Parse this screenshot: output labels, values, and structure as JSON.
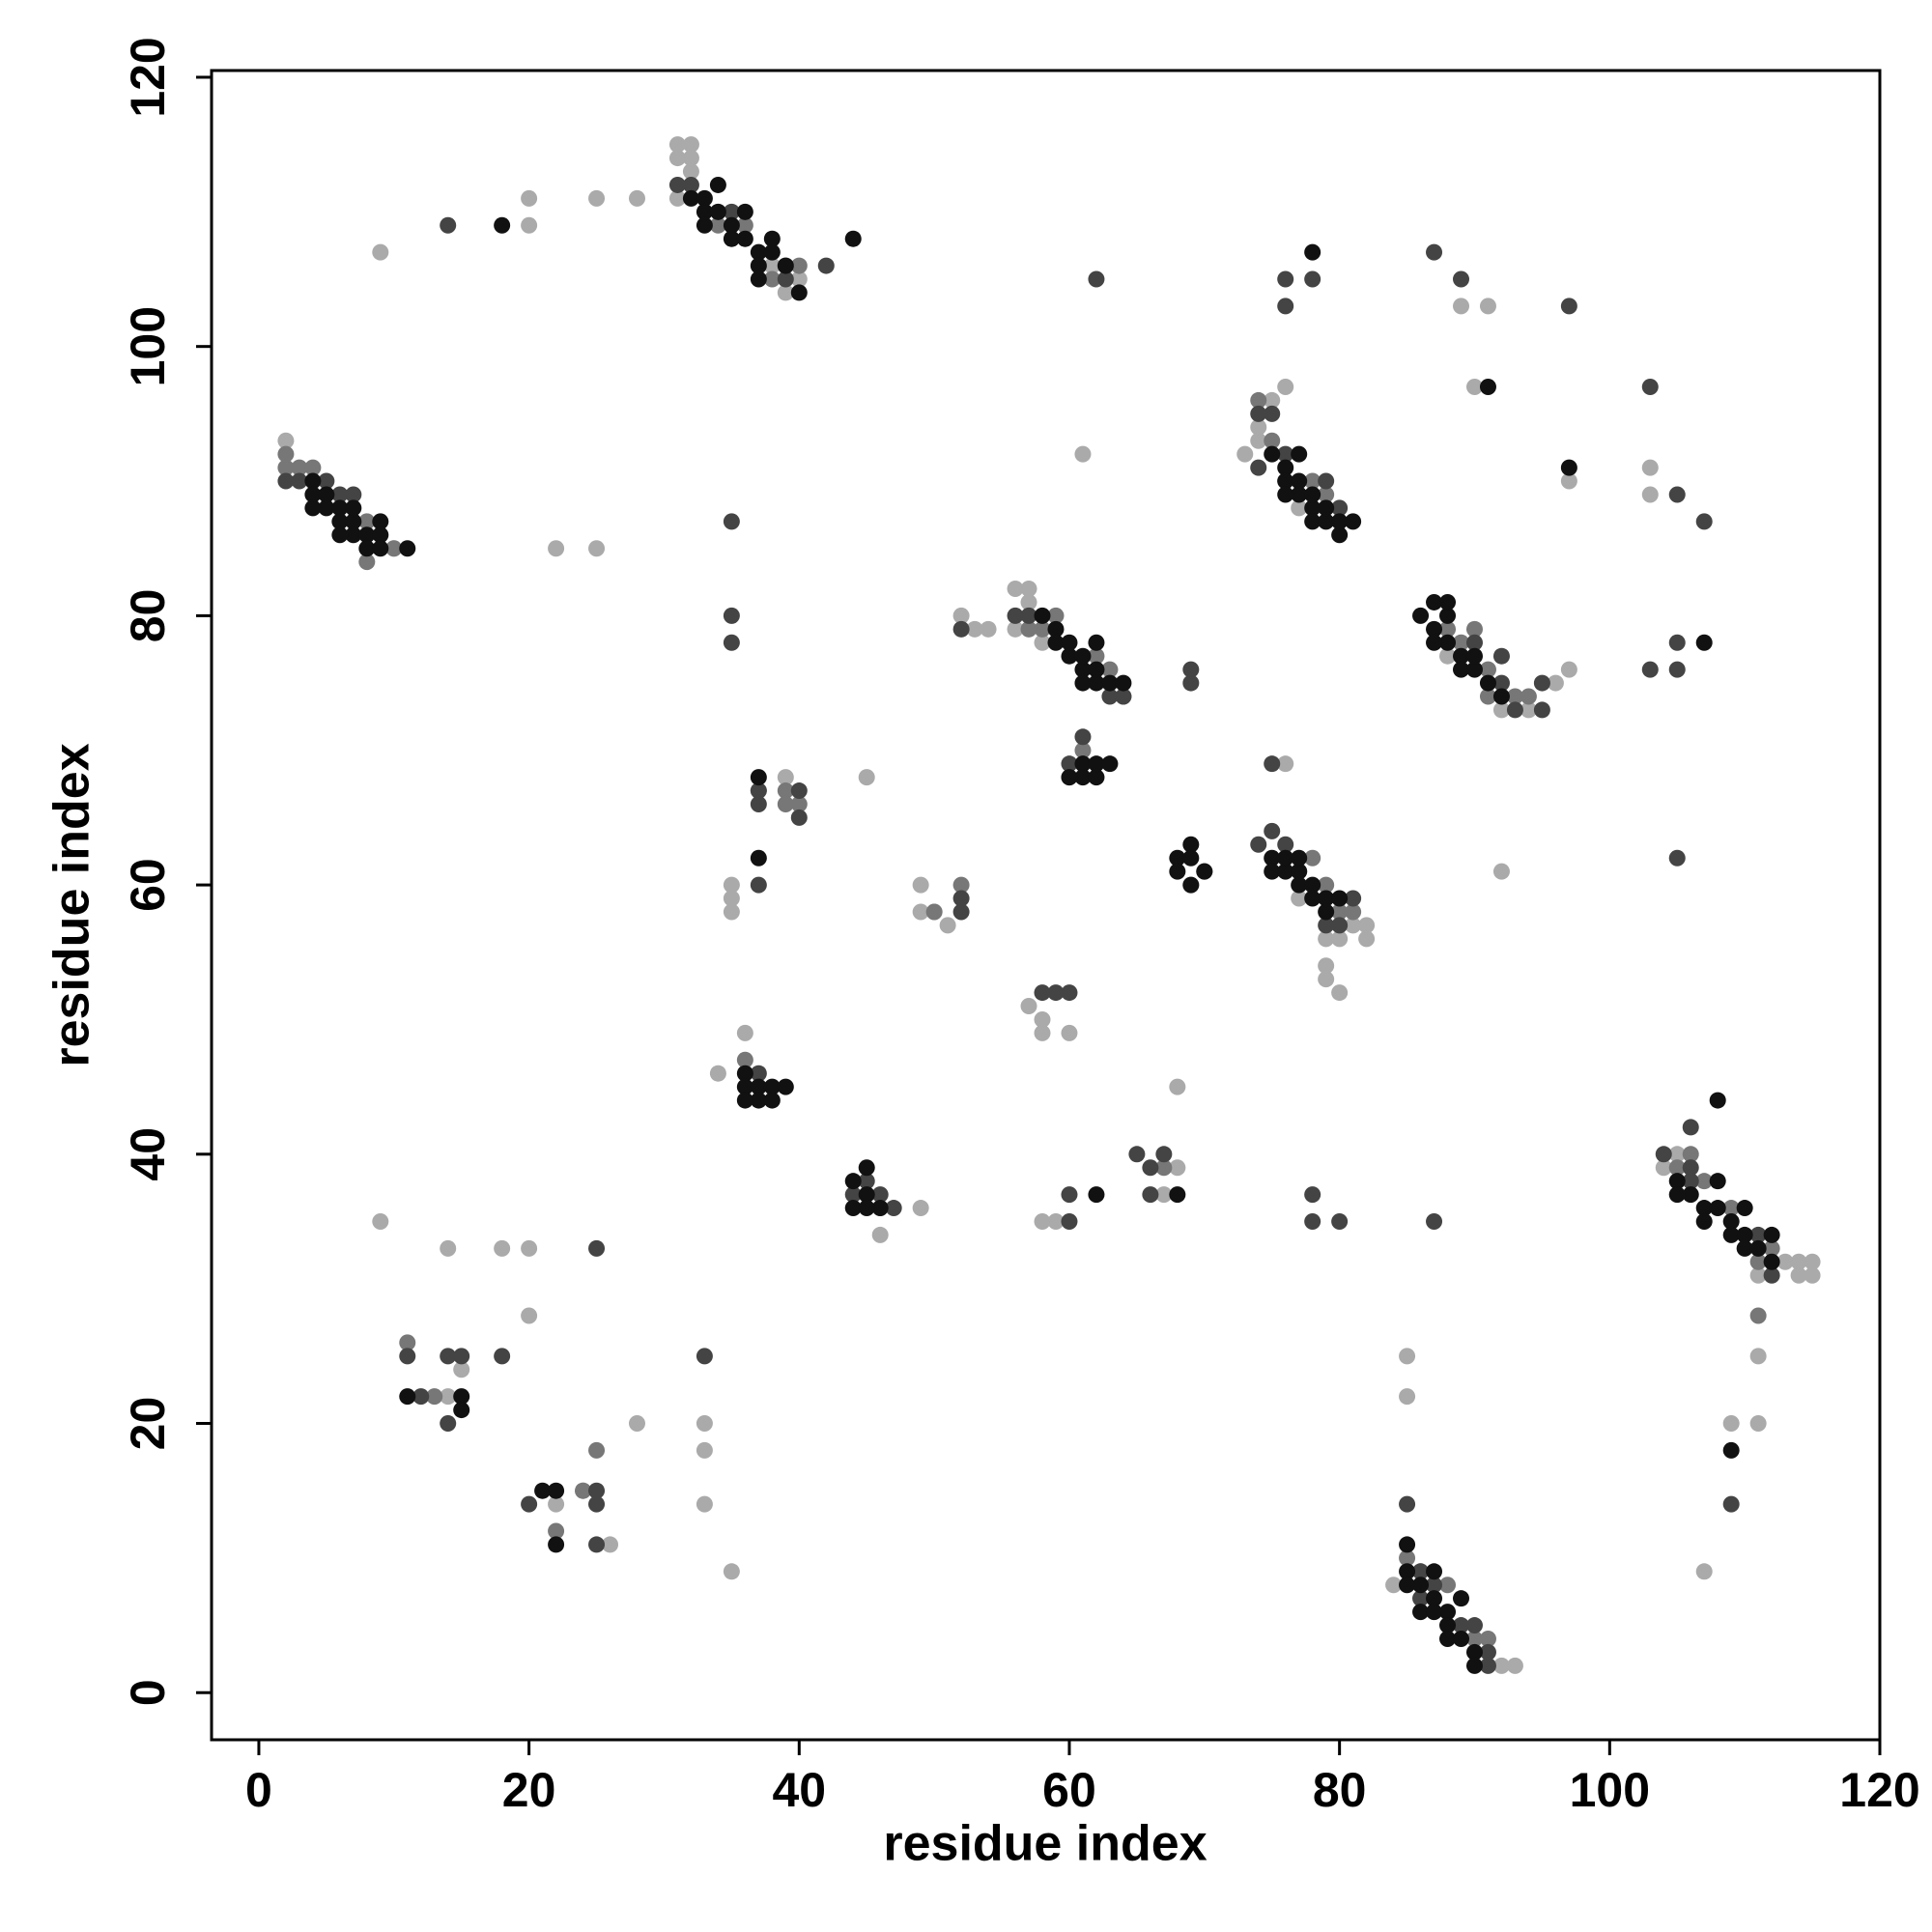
{
  "chart_data": {
    "type": "scatter",
    "xlabel": "residue index",
    "ylabel": "residue index",
    "xlim": [
      -3.5,
      120
    ],
    "ylim": [
      -3.5,
      120.5
    ],
    "xticks": [
      0,
      20,
      40,
      60,
      80,
      100,
      120
    ],
    "yticks": [
      0,
      20,
      40,
      60,
      80,
      100,
      120
    ],
    "series": [
      {
        "color": "#aaaaaa",
        "x": [
          2,
          9,
          20,
          20,
          25,
          28,
          31,
          32,
          31,
          32,
          31,
          32,
          39,
          40,
          38,
          22,
          25,
          10,
          9,
          14,
          18,
          20,
          20,
          15,
          14,
          24,
          22,
          26,
          28,
          33,
          33,
          33,
          35,
          34,
          36,
          35,
          35,
          35,
          39,
          45,
          49,
          49,
          50,
          51,
          49,
          46,
          52,
          53,
          54,
          56,
          57,
          56,
          57,
          58,
          61,
          57,
          58,
          58,
          60,
          58,
          59,
          68,
          68,
          67,
          69,
          74,
          75,
          76,
          73,
          74,
          77,
          80,
          82,
          82,
          81,
          79,
          79,
          80,
          79,
          77,
          89,
          91,
          90,
          97,
          97,
          96,
          94,
          92,
          103,
          103,
          104,
          105,
          113,
          114,
          115,
          114,
          115,
          111,
          111,
          111,
          109,
          107,
          85,
          85,
          93,
          92,
          84,
          88,
          92,
          76
        ],
        "y": [
          93,
          107,
          111,
          109,
          111,
          111,
          115,
          115,
          114,
          114,
          111,
          113,
          104,
          105,
          106,
          85,
          85,
          85,
          35,
          33,
          33,
          33,
          28,
          24,
          22,
          15,
          14,
          11,
          20,
          20,
          18,
          14,
          9,
          46,
          49,
          58,
          59,
          60,
          68,
          68,
          60,
          58,
          58,
          57,
          36,
          34,
          80,
          79,
          79,
          82,
          82,
          79,
          81,
          78,
          92,
          51,
          50,
          49,
          49,
          35,
          35,
          39,
          45,
          37,
          60,
          94,
          96,
          97,
          92,
          93,
          88,
          56,
          57,
          56,
          57,
          54,
          53,
          52,
          56,
          59,
          103,
          103,
          97,
          90,
          76,
          75,
          73,
          73,
          91,
          89,
          39,
          40,
          32,
          32,
          32,
          31,
          31,
          31,
          25,
          20,
          20,
          9,
          25,
          22,
          2,
          2,
          8,
          77,
          61,
          69
        ]
      },
      {
        "color": "#777777",
        "x": [
          2,
          2,
          3,
          4,
          8,
          8,
          10,
          11,
          13,
          22,
          25,
          34,
          36,
          38,
          39,
          40,
          24,
          40,
          39,
          39,
          37,
          61,
          60,
          59,
          58,
          62,
          63,
          64,
          57,
          74,
          75,
          76,
          78,
          79,
          80,
          77,
          78,
          79,
          81,
          80,
          88,
          89,
          90,
          91,
          91,
          93,
          94,
          105,
          106,
          107,
          109,
          111,
          112,
          111,
          85,
          86,
          88,
          90,
          91,
          67,
          52,
          50,
          36,
          46
        ],
        "y": [
          91,
          92,
          91,
          91,
          84,
          87,
          85,
          26,
          22,
          12,
          18,
          109,
          109,
          105,
          106,
          106,
          15,
          66,
          67,
          66,
          67,
          70,
          68,
          80,
          79,
          77,
          76,
          74,
          79,
          96,
          93,
          90,
          90,
          89,
          87,
          61,
          62,
          60,
          58,
          58,
          79,
          78,
          79,
          76,
          74,
          74,
          74,
          39,
          40,
          38,
          36,
          32,
          33,
          28,
          10,
          9,
          8,
          4,
          4,
          39,
          60,
          58,
          47,
          36
        ]
      },
      {
        "color": "#444444",
        "x": [
          2,
          3,
          5,
          7,
          6,
          14,
          20,
          25,
          25,
          25,
          33,
          14,
          15,
          11,
          14,
          12,
          18,
          35,
          35,
          35,
          37,
          37,
          40,
          40,
          42,
          32,
          31,
          35,
          39,
          62,
          76,
          78,
          87,
          89,
          97,
          103,
          105,
          107,
          103,
          105,
          105,
          105,
          106,
          104,
          106,
          106,
          111,
          112,
          109,
          87,
          78,
          80,
          78,
          85,
          60,
          60,
          65,
          66,
          67,
          66,
          58,
          59,
          60,
          61,
          60,
          63,
          64,
          69,
          69,
          57,
          56,
          52,
          52,
          52,
          37,
          37,
          46,
          47,
          44,
          45,
          70,
          74,
          74,
          75,
          76,
          79,
          80,
          75,
          76,
          75,
          74,
          81,
          80,
          79,
          90,
          92,
          92,
          93,
          95,
          95,
          86,
          86,
          87,
          89,
          90,
          91,
          91,
          76,
          25
        ],
        "y": [
          90,
          90,
          90,
          89,
          89,
          109,
          14,
          15,
          14,
          11,
          25,
          25,
          25,
          25,
          20,
          22,
          25,
          87,
          80,
          78,
          67,
          66,
          67,
          65,
          106,
          112,
          112,
          110,
          105,
          105,
          105,
          105,
          107,
          105,
          103,
          97,
          89,
          87,
          76,
          76,
          78,
          62,
          42,
          40,
          39,
          38,
          34,
          31,
          14,
          35,
          35,
          35,
          37,
          14,
          35,
          37,
          40,
          39,
          40,
          37,
          52,
          52,
          52,
          71,
          69,
          74,
          74,
          75,
          76,
          80,
          80,
          79,
          59,
          58,
          60,
          46,
          37,
          36,
          37,
          38,
          61,
          95,
          91,
          95,
          92,
          90,
          88,
          69,
          63,
          64,
          63,
          59,
          57,
          57,
          78,
          75,
          77,
          73,
          75,
          73,
          9,
          7,
          8,
          5,
          5,
          3,
          2,
          103,
          33
        ]
      },
      {
        "color": "#111111",
        "x": [
          4,
          4,
          5,
          4,
          5,
          6,
          6,
          7,
          7,
          8,
          8,
          9,
          9,
          9,
          11,
          6,
          7,
          32,
          33,
          33,
          34,
          34,
          33,
          35,
          35,
          36,
          36,
          37,
          37,
          38,
          38,
          37,
          39,
          40,
          44,
          18,
          58,
          59,
          59,
          60,
          60,
          61,
          61,
          62,
          61,
          62,
          62,
          63,
          64,
          61,
          61,
          62,
          62,
          63,
          60,
          75,
          76,
          76,
          77,
          77,
          78,
          78,
          78,
          79,
          79,
          80,
          80,
          81,
          76,
          77,
          78,
          86,
          87,
          87,
          88,
          88,
          89,
          89,
          90,
          90,
          91,
          92,
          87,
          88,
          91,
          97,
          75,
          75,
          76,
          76,
          77,
          77,
          78,
          78,
          79,
          79,
          77,
          80,
          68,
          69,
          69,
          68,
          70,
          69,
          36,
          36,
          37,
          37,
          38,
          38,
          39,
          36,
          44,
          45,
          44,
          45,
          46,
          45,
          105,
          106,
          107,
          107,
          108,
          108,
          109,
          109,
          110,
          110,
          110,
          111,
          112,
          112,
          108,
          105,
          107,
          85,
          85,
          86,
          86,
          87,
          87,
          88,
          88,
          88,
          89,
          89,
          90,
          90,
          85,
          87,
          11,
          15,
          15,
          21,
          22,
          22,
          37,
          37,
          62,
          68,
          109
        ],
        "y": [
          90,
          89,
          88,
          88,
          89,
          88,
          87,
          87,
          86,
          86,
          85,
          87,
          86,
          85,
          85,
          86,
          88,
          111,
          111,
          110,
          112,
          110,
          109,
          109,
          108,
          110,
          108,
          107,
          106,
          108,
          107,
          105,
          106,
          104,
          108,
          109,
          80,
          79,
          78,
          77,
          78,
          76,
          77,
          76,
          75,
          78,
          75,
          75,
          75,
          69,
          68,
          68,
          69,
          69,
          68,
          92,
          91,
          90,
          90,
          89,
          88,
          89,
          87,
          87,
          88,
          86,
          87,
          87,
          89,
          92,
          107,
          80,
          81,
          79,
          78,
          80,
          77,
          76,
          76,
          77,
          75,
          74,
          78,
          81,
          97,
          91,
          62,
          61,
          61,
          62,
          60,
          61,
          60,
          59,
          58,
          59,
          62,
          59,
          62,
          63,
          62,
          61,
          61,
          60,
          46,
          45,
          45,
          44,
          45,
          44,
          45,
          44,
          38,
          39,
          36,
          37,
          36,
          36,
          38,
          37,
          36,
          35,
          38,
          36,
          35,
          34,
          36,
          34,
          33,
          33,
          34,
          32,
          44,
          37,
          78,
          11,
          9,
          8,
          6,
          9,
          7,
          6,
          5,
          4,
          7,
          4,
          3,
          2,
          8,
          6,
          22,
          22,
          21,
          15,
          15,
          11,
          68,
          62,
          37,
          37,
          18
        ]
      }
    ]
  }
}
